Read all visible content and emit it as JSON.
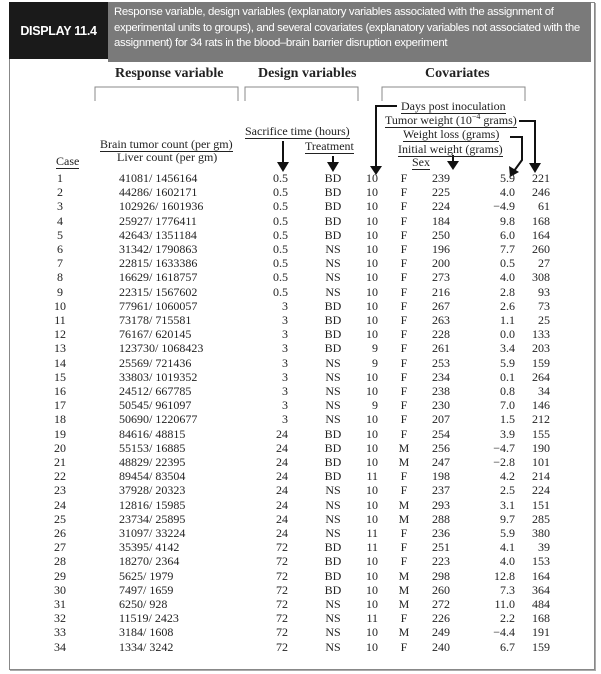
{
  "display_label": "DISPLAY 11.4",
  "caption": "Response variable, design variables (explanatory variables associated with the assignment of experimental units to groups), and several covariates (explanatory variables not associated with the assignment) for 34 rats in the blood–brain barrier disruption experiment",
  "groups": {
    "response": "Response variable",
    "design": "Design variables",
    "covariates": "Covariates"
  },
  "headers": {
    "case": "Case",
    "brain": "Brain tumor count (per gm)",
    "liver": "Liver count (per gm)",
    "sacrifice": "Sacrifice time (hours)",
    "treatment": "Treatment",
    "days": "Days post inoculation",
    "tumor_pre": "Tumor weight (10",
    "tumor_exp": "−4",
    "tumor_post": " grams)",
    "loss": "Weight loss (grams)",
    "initial": "Initial weight (grams)",
    "sex": "Sex"
  },
  "rows": [
    [
      "1",
      "41081/ 1456164",
      "0.5",
      "BD",
      "10",
      "F",
      "239",
      "5.9",
      "221"
    ],
    [
      "2",
      "44286/ 1602171",
      "0.5",
      "BD",
      "10",
      "F",
      "225",
      "4.0",
      "246"
    ],
    [
      "3",
      "102926/ 1601936",
      "0.5",
      "BD",
      "10",
      "F",
      "224",
      "−4.9",
      "61"
    ],
    [
      "4",
      "25927/ 1776411",
      "0.5",
      "BD",
      "10",
      "F",
      "184",
      "9.8",
      "168"
    ],
    [
      "5",
      "42643/ 1351184",
      "0.5",
      "BD",
      "10",
      "F",
      "250",
      "6.0",
      "164"
    ],
    [
      "6",
      "31342/ 1790863",
      "0.5",
      "NS",
      "10",
      "F",
      "196",
      "7.7",
      "260"
    ],
    [
      "7",
      "22815/ 1633386",
      "0.5",
      "NS",
      "10",
      "F",
      "200",
      "0.5",
      "27"
    ],
    [
      "8",
      "16629/ 1618757",
      "0.5",
      "NS",
      "10",
      "F",
      "273",
      "4.0",
      "308"
    ],
    [
      "9",
      "22315/ 1567602",
      "0.5",
      "NS",
      "10",
      "F",
      "216",
      "2.8",
      "93"
    ],
    [
      "10",
      "77961/ 1060057",
      "3",
      "BD",
      "10",
      "F",
      "267",
      "2.6",
      "73"
    ],
    [
      "11",
      "73178/ 715581",
      "3",
      "BD",
      "10",
      "F",
      "263",
      "1.1",
      "25"
    ],
    [
      "12",
      "76167/ 620145",
      "3",
      "BD",
      "10",
      "F",
      "228",
      "0.0",
      "133"
    ],
    [
      "13",
      "123730/ 1068423",
      "3",
      "BD",
      "9",
      "F",
      "261",
      "3.4",
      "203"
    ],
    [
      "14",
      "25569/ 721436",
      "3",
      "NS",
      "9",
      "F",
      "253",
      "5.9",
      "159"
    ],
    [
      "15",
      "33803/ 1019352",
      "3",
      "NS",
      "10",
      "F",
      "234",
      "0.1",
      "264"
    ],
    [
      "16",
      "24512/ 667785",
      "3",
      "NS",
      "10",
      "F",
      "238",
      "0.8",
      "34"
    ],
    [
      "17",
      "50545/ 961097",
      "3",
      "NS",
      "9",
      "F",
      "230",
      "7.0",
      "146"
    ],
    [
      "18",
      "50690/ 1220677",
      "3",
      "NS",
      "10",
      "F",
      "207",
      "1.5",
      "212"
    ],
    [
      "19",
      "84616/ 48815",
      "24",
      "BD",
      "10",
      "F",
      "254",
      "3.9",
      "155"
    ],
    [
      "20",
      "55153/ 16885",
      "24",
      "BD",
      "10",
      "M",
      "256",
      "−4.7",
      "190"
    ],
    [
      "21",
      "48829/ 22395",
      "24",
      "BD",
      "10",
      "M",
      "247",
      "−2.8",
      "101"
    ],
    [
      "22",
      "89454/ 83504",
      "24",
      "BD",
      "11",
      "F",
      "198",
      "4.2",
      "214"
    ],
    [
      "23",
      "37928/ 20323",
      "24",
      "NS",
      "10",
      "F",
      "237",
      "2.5",
      "224"
    ],
    [
      "24",
      "12816/ 15985",
      "24",
      "NS",
      "10",
      "M",
      "293",
      "3.1",
      "151"
    ],
    [
      "25",
      "23734/ 25895",
      "24",
      "NS",
      "10",
      "M",
      "288",
      "9.7",
      "285"
    ],
    [
      "26",
      "31097/ 33224",
      "24",
      "NS",
      "11",
      "F",
      "236",
      "5.9",
      "380"
    ],
    [
      "27",
      "35395/ 4142",
      "72",
      "BD",
      "11",
      "F",
      "251",
      "4.1",
      "39"
    ],
    [
      "28",
      "18270/ 2364",
      "72",
      "BD",
      "10",
      "F",
      "223",
      "4.0",
      "153"
    ],
    [
      "29",
      "5625/ 1979",
      "72",
      "BD",
      "10",
      "M",
      "298",
      "12.8",
      "164"
    ],
    [
      "30",
      "7497/ 1659",
      "72",
      "BD",
      "10",
      "M",
      "260",
      "7.3",
      "364"
    ],
    [
      "31",
      "6250/ 928",
      "72",
      "NS",
      "10",
      "M",
      "272",
      "11.0",
      "484"
    ],
    [
      "32",
      "11519/ 2423",
      "72",
      "NS",
      "11",
      "F",
      "226",
      "2.2",
      "168"
    ],
    [
      "33",
      "3184/ 1608",
      "72",
      "NS",
      "10",
      "M",
      "249",
      "−4.4",
      "191"
    ],
    [
      "34",
      "1334/ 3242",
      "72",
      "NS",
      "10",
      "F",
      "240",
      "6.7",
      "159"
    ]
  ]
}
